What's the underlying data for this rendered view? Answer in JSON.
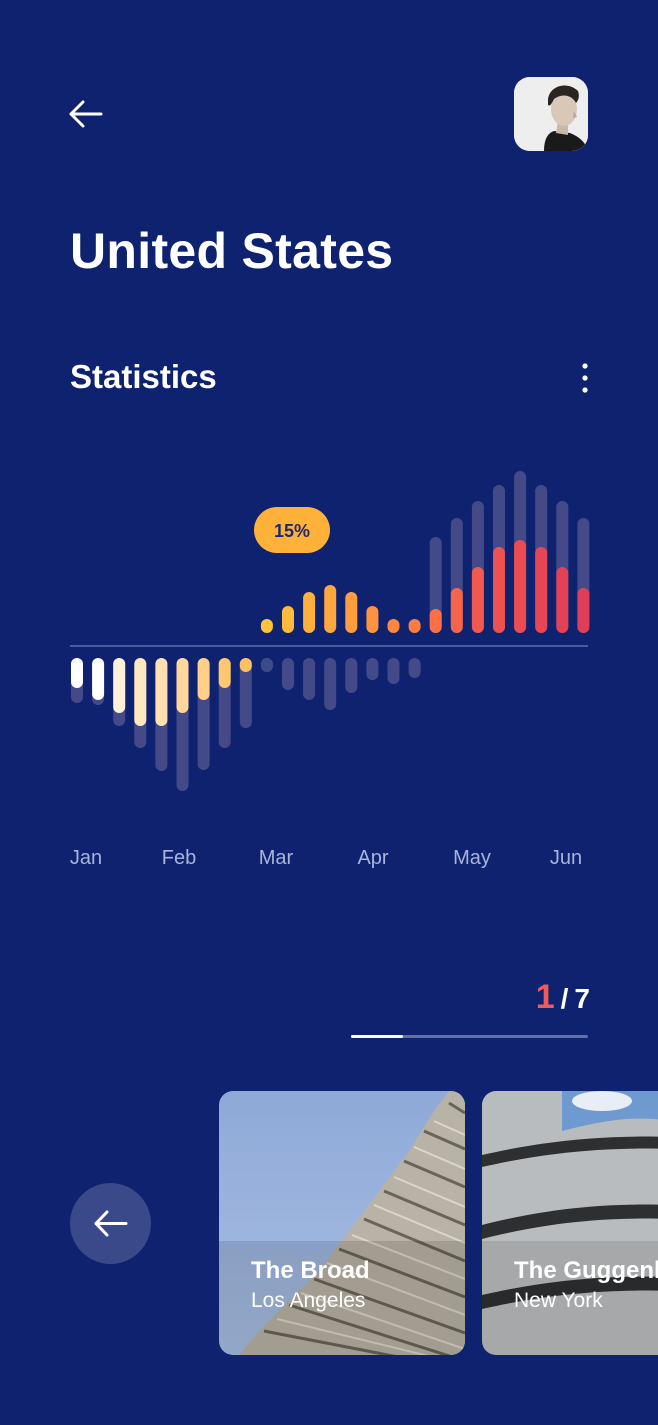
{
  "header": {
    "back_icon": "arrow-left-icon",
    "avatar_icon": "user-avatar-photo"
  },
  "page": {
    "title": "United States"
  },
  "statistics": {
    "title": "Statistics",
    "menu_icon": "more-vertical-icon"
  },
  "chart_data": {
    "type": "bar",
    "months": [
      "Jan",
      "Feb",
      "Mar",
      "Apr",
      "May",
      "Jun"
    ],
    "highlight_label": "15%",
    "top_bars": [
      {
        "solid": 0,
        "ghost": 0
      },
      {
        "solid": 0,
        "ghost": 0
      },
      {
        "solid": 0,
        "ghost": 0
      },
      {
        "solid": 0,
        "ghost": 0
      },
      {
        "solid": 0,
        "ghost": 0
      },
      {
        "solid": 0,
        "ghost": 0
      },
      {
        "solid": 0,
        "ghost": 0
      },
      {
        "solid": 0,
        "ghost": 0
      },
      {
        "solid": 0,
        "ghost": 0
      },
      {
        "solid": 14,
        "ghost": 0
      },
      {
        "solid": 27,
        "ghost": 0
      },
      {
        "solid": 41,
        "ghost": 0
      },
      {
        "solid": 48,
        "ghost": 0
      },
      {
        "solid": 41,
        "ghost": 0
      },
      {
        "solid": 27,
        "ghost": 0
      },
      {
        "solid": 14,
        "ghost": 0
      },
      {
        "solid": 14,
        "ghost": 0
      },
      {
        "solid": 24,
        "ghost": 96
      },
      {
        "solid": 45,
        "ghost": 115
      },
      {
        "solid": 66,
        "ghost": 132
      },
      {
        "solid": 86,
        "ghost": 148
      },
      {
        "solid": 93,
        "ghost": 162
      },
      {
        "solid": 86,
        "ghost": 148
      },
      {
        "solid": 66,
        "ghost": 132
      },
      {
        "solid": 45,
        "ghost": 115
      }
    ],
    "bottom_bars": [
      {
        "solid": 30,
        "ghost": 45
      },
      {
        "solid": 42,
        "ghost": 47
      },
      {
        "solid": 55,
        "ghost": 68
      },
      {
        "solid": 68,
        "ghost": 90
      },
      {
        "solid": 68,
        "ghost": 113
      },
      {
        "solid": 55,
        "ghost": 133
      },
      {
        "solid": 42,
        "ghost": 112
      },
      {
        "solid": 30,
        "ghost": 90
      },
      {
        "solid": 14,
        "ghost": 70
      },
      {
        "solid": 14,
        "ghost": 14
      },
      {
        "solid": 0,
        "ghost": 32
      },
      {
        "solid": 0,
        "ghost": 42
      },
      {
        "solid": 0,
        "ghost": 52
      },
      {
        "solid": 0,
        "ghost": 35
      },
      {
        "solid": 0,
        "ghost": 22
      },
      {
        "solid": 0,
        "ghost": 26
      },
      {
        "solid": 0,
        "ghost": 20
      }
    ],
    "colors": {
      "bottom_solid": [
        "#ffffff",
        "#ffffff",
        "#fff1d9",
        "#ffe7bf",
        "#ffe0b0",
        "#ffd79a",
        "#ffd08a",
        "#ffc870",
        "#ffc060",
        "#3c4a8a"
      ],
      "top_warm": [
        "#ffc23d",
        "#ffba3a",
        "#ffb03b",
        "#ffa63c",
        "#ff9c3e",
        "#ff9240",
        "#ff8742",
        "#ff7c45",
        "#ff7048",
        "#f6644b",
        "#f2594e",
        "#ee5250",
        "#ea4c52",
        "#e64654",
        "#e24256",
        "#de3e58"
      ],
      "ghost": "#4a4f8a",
      "baseline": "#4a5a9c",
      "label_bg": "#ffb13a",
      "label_text": "#1e2a6e"
    }
  },
  "pager": {
    "current": "1",
    "separator": "/",
    "total": "7",
    "progress": 0.22
  },
  "carousel": {
    "prev_icon": "arrow-left-icon",
    "cards": [
      {
        "title": "The Broad",
        "subtitle": "Los Angeles"
      },
      {
        "title": "The Guggenheim",
        "subtitle": "New York"
      }
    ]
  }
}
